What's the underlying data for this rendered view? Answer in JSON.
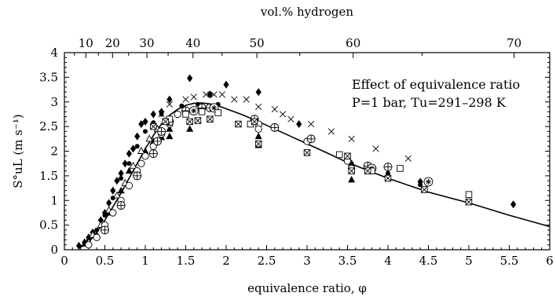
{
  "chart_data": {
    "type": "scatter",
    "xlabel": "equivalence ratio, φ",
    "ylabel": "S°uL (m s⁻¹)",
    "top_axis_label": "vol.% hydrogen",
    "xlim": [
      0,
      6
    ],
    "ylim": [
      0,
      4
    ],
    "x_ticks": [
      "0",
      "0.5",
      "1",
      "1.5",
      "2",
      "2.5",
      "3",
      "3.5",
      "4",
      "4.5",
      "5",
      "5.5",
      "6"
    ],
    "y_ticks": [
      "0",
      "0.5",
      "1",
      "1.5",
      "2",
      "2.5",
      "3",
      "3.5",
      "4"
    ],
    "top_ticks": [
      {
        "label": "10",
        "phi": 0.265
      },
      {
        "label": "20",
        "phi": 0.595
      },
      {
        "label": "30",
        "phi": 1.02
      },
      {
        "label": "40",
        "phi": 1.59
      },
      {
        "label": "50",
        "phi": 2.38
      },
      {
        "label": "60",
        "phi": 3.57
      },
      {
        "label": "70",
        "phi": 5.56
      }
    ],
    "annotation_lines": [
      "Effect of equivalence ratio",
      "P=1 bar, Tu=291–298 K"
    ],
    "grid": false,
    "series": [
      {
        "marker": "line",
        "points": [
          [
            0.2,
            0.05
          ],
          [
            0.3,
            0.15
          ],
          [
            0.4,
            0.35
          ],
          [
            0.5,
            0.6
          ],
          [
            0.6,
            0.87
          ],
          [
            0.7,
            1.15
          ],
          [
            0.8,
            1.45
          ],
          [
            0.9,
            1.75
          ],
          [
            1.0,
            2.05
          ],
          [
            1.1,
            2.32
          ],
          [
            1.2,
            2.55
          ],
          [
            1.3,
            2.73
          ],
          [
            1.4,
            2.85
          ],
          [
            1.5,
            2.93
          ],
          [
            1.6,
            2.97
          ],
          [
            1.7,
            2.98
          ],
          [
            1.8,
            2.96
          ],
          [
            1.9,
            2.92
          ],
          [
            2.0,
            2.86
          ],
          [
            2.2,
            2.74
          ],
          [
            2.4,
            2.6
          ],
          [
            2.6,
            2.45
          ],
          [
            2.8,
            2.3
          ],
          [
            3.0,
            2.15
          ],
          [
            3.2,
            2.0
          ],
          [
            3.5,
            1.77
          ],
          [
            4.0,
            1.45
          ],
          [
            4.5,
            1.17
          ],
          [
            5.0,
            0.95
          ],
          [
            5.5,
            0.7
          ],
          [
            6.0,
            0.47
          ]
        ]
      },
      {
        "marker": "diamond",
        "points": [
          [
            0.18,
            0.08
          ],
          [
            0.25,
            0.15
          ],
          [
            0.3,
            0.25
          ],
          [
            0.35,
            0.35
          ],
          [
            0.45,
            0.6
          ],
          [
            0.5,
            0.75
          ],
          [
            0.55,
            0.95
          ],
          [
            0.6,
            1.2
          ],
          [
            0.65,
            1.4
          ],
          [
            0.7,
            1.55
          ],
          [
            0.75,
            1.75
          ],
          [
            0.8,
            1.95
          ],
          [
            0.85,
            2.05
          ],
          [
            0.9,
            2.3
          ],
          [
            0.95,
            2.55
          ],
          [
            1.0,
            2.6
          ],
          [
            1.1,
            2.75
          ],
          [
            1.2,
            2.8
          ],
          [
            1.3,
            3.05
          ],
          [
            1.55,
            3.48
          ],
          [
            1.8,
            3.15
          ],
          [
            2.0,
            3.35
          ],
          [
            2.4,
            3.2
          ],
          [
            2.9,
            2.55
          ],
          [
            4.4,
            1.38
          ],
          [
            5.55,
            0.92
          ]
        ]
      },
      {
        "marker": "dot",
        "points": [
          [
            0.3,
            0.2
          ],
          [
            0.4,
            0.4
          ],
          [
            0.5,
            0.7
          ],
          [
            0.6,
            1.05
          ],
          [
            0.7,
            1.45
          ],
          [
            0.8,
            1.75
          ],
          [
            0.9,
            2.1
          ],
          [
            1.0,
            2.4
          ],
          [
            1.1,
            2.58
          ],
          [
            1.2,
            2.75
          ],
          [
            1.45,
            2.92
          ],
          [
            1.65,
            2.95
          ],
          [
            1.9,
            2.95
          ],
          [
            2.4,
            2.45
          ],
          [
            3.05,
            2.25
          ],
          [
            3.55,
            1.75
          ],
          [
            4.0,
            1.55
          ],
          [
            4.4,
            1.32
          ]
        ]
      },
      {
        "marker": "triangle-filled",
        "points": [
          [
            0.25,
            0.12
          ],
          [
            0.4,
            0.3
          ],
          [
            0.55,
            0.75
          ],
          [
            0.7,
            1.2
          ],
          [
            0.8,
            1.6
          ],
          [
            1.0,
            2.0
          ],
          [
            1.1,
            2.2
          ],
          [
            1.2,
            2.28
          ],
          [
            1.3,
            2.3
          ],
          [
            1.3,
            2.45
          ],
          [
            1.55,
            2.45
          ],
          [
            2.4,
            2.12
          ],
          [
            2.4,
            2.3
          ],
          [
            3.55,
            1.75
          ],
          [
            3.55,
            1.42
          ]
        ]
      },
      {
        "marker": "open-triangle",
        "points": [
          [
            0.3,
            0.15
          ],
          [
            0.35,
            0.3
          ],
          [
            0.45,
            0.5
          ],
          [
            0.55,
            0.8
          ],
          [
            0.65,
            1.1
          ],
          [
            0.75,
            1.35
          ],
          [
            0.85,
            1.7
          ],
          [
            0.95,
            2.0
          ],
          [
            1.05,
            2.25
          ],
          [
            1.15,
            2.45
          ],
          [
            1.25,
            2.6
          ]
        ]
      },
      {
        "marker": "circle",
        "points": [
          [
            0.3,
            0.1
          ],
          [
            0.4,
            0.25
          ],
          [
            0.5,
            0.5
          ],
          [
            0.6,
            0.75
          ],
          [
            0.7,
            1.0
          ],
          [
            0.8,
            1.3
          ],
          [
            0.9,
            1.6
          ],
          [
            0.95,
            1.75
          ],
          [
            1.0,
            1.9
          ],
          [
            1.1,
            2.1
          ],
          [
            1.2,
            2.35
          ],
          [
            1.3,
            2.55
          ],
          [
            1.4,
            2.75
          ],
          [
            2.4,
            2.55
          ],
          [
            2.4,
            2.45
          ],
          [
            3.0,
            2.2
          ],
          [
            3.5,
            1.8
          ],
          [
            3.55,
            1.65
          ]
        ]
      },
      {
        "marker": "circle-plus",
        "points": [
          [
            0.5,
            0.4
          ],
          [
            0.7,
            0.9
          ],
          [
            0.9,
            1.5
          ],
          [
            1.1,
            1.95
          ],
          [
            1.15,
            2.2
          ],
          [
            1.2,
            2.4
          ],
          [
            1.3,
            2.6
          ],
          [
            1.5,
            2.82
          ],
          [
            1.7,
            2.88
          ],
          [
            1.8,
            2.88
          ],
          [
            2.35,
            2.65
          ],
          [
            2.6,
            2.48
          ],
          [
            3.05,
            2.25
          ],
          [
            3.75,
            1.7
          ],
          [
            4.0,
            1.68
          ]
        ]
      },
      {
        "marker": "circle-star",
        "points": [
          [
            1.6,
            2.82
          ],
          [
            1.85,
            2.88
          ],
          [
            3.8,
            1.65
          ],
          [
            4.5,
            1.38
          ]
        ]
      },
      {
        "marker": "square",
        "points": [
          [
            1.3,
            2.65
          ],
          [
            1.5,
            2.75
          ],
          [
            1.7,
            2.8
          ],
          [
            1.9,
            2.78
          ],
          [
            2.3,
            2.55
          ],
          [
            3.4,
            1.93
          ],
          [
            3.8,
            1.6
          ],
          [
            4.15,
            1.65
          ],
          [
            5.0,
            1.12
          ]
        ]
      },
      {
        "marker": "square-x",
        "points": [
          [
            1.1,
            2.5
          ],
          [
            1.25,
            2.6
          ],
          [
            1.55,
            2.6
          ],
          [
            1.65,
            2.62
          ],
          [
            1.8,
            2.65
          ],
          [
            2.15,
            2.55
          ],
          [
            2.35,
            2.6
          ],
          [
            2.4,
            2.15
          ],
          [
            3.0,
            1.97
          ],
          [
            3.5,
            1.9
          ],
          [
            3.55,
            1.6
          ],
          [
            3.75,
            1.6
          ],
          [
            4.0,
            1.45
          ],
          [
            4.45,
            1.22
          ],
          [
            5.0,
            0.97
          ]
        ]
      },
      {
        "marker": "cross",
        "points": [
          [
            1.2,
            2.75
          ],
          [
            1.3,
            2.95
          ],
          [
            1.5,
            3.05
          ],
          [
            1.6,
            3.1
          ],
          [
            1.75,
            3.15
          ],
          [
            1.85,
            3.15
          ],
          [
            1.95,
            3.15
          ],
          [
            2.1,
            3.05
          ],
          [
            2.25,
            3.05
          ],
          [
            2.4,
            2.9
          ],
          [
            2.6,
            2.85
          ],
          [
            2.7,
            2.75
          ],
          [
            2.8,
            2.65
          ],
          [
            3.05,
            2.55
          ],
          [
            3.3,
            2.4
          ],
          [
            3.55,
            2.25
          ],
          [
            3.85,
            2.05
          ],
          [
            4.25,
            1.85
          ]
        ]
      }
    ]
  }
}
